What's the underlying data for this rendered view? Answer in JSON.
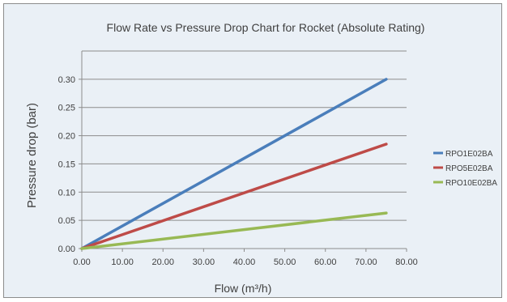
{
  "chart_data": {
    "type": "line",
    "title": "Flow Rate vs Pressure Drop Chart for Rocket (Absolute Rating)",
    "xlabel": "Flow  (m³/h)",
    "ylabel": "Pressure drop (bar)",
    "xlim": [
      0,
      80
    ],
    "ylim": [
      0,
      0.35
    ],
    "xticks": [
      "0.00",
      "10.00",
      "20.00",
      "30.00",
      "40.00",
      "50.00",
      "60.00",
      "70.00",
      "80.00"
    ],
    "yticks": [
      "0.00",
      "0.05",
      "0.10",
      "0.15",
      "0.20",
      "0.25",
      "0.30"
    ],
    "grid": "horizontal",
    "legend_position": "right",
    "series": [
      {
        "name": "RPO1E02BA",
        "color": "#4a7ebb",
        "x": [
          0,
          75
        ],
        "y": [
          0,
          0.3
        ]
      },
      {
        "name": "RPO5E02BA",
        "color": "#be4b48",
        "x": [
          0,
          75
        ],
        "y": [
          0,
          0.185
        ]
      },
      {
        "name": "RPO10E02BA",
        "color": "#98b954",
        "x": [
          0,
          75
        ],
        "y": [
          0,
          0.063
        ]
      }
    ]
  }
}
